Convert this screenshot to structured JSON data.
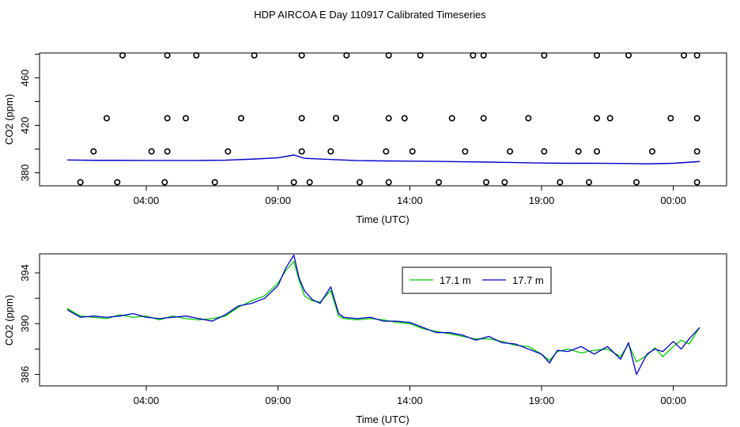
{
  "title": "HDP AIRCOA E  Day 110917  Calibrated Timeseries",
  "chart_data": [
    {
      "type": "scatter",
      "xlabel": "Time (UTC)",
      "ylabel": "CO2 (ppm)",
      "xlim": [
        0,
        24
      ],
      "ylim": [
        369,
        481
      ],
      "x_ticks": [
        3,
        8,
        13,
        18,
        23
      ],
      "x_tick_labels": [
        "04:00",
        "09:00",
        "14:00",
        "19:00",
        "00:00"
      ],
      "y_ticks": [
        380,
        420,
        460
      ],
      "y_tick_labels": [
        "380",
        "420",
        "460"
      ],
      "grid": false,
      "series": [
        {
          "kind": "calibration-points",
          "color": "#000000",
          "points": [
            [
              0.5,
              372
            ],
            [
              1.9,
              372
            ],
            [
              3.7,
              372
            ],
            [
              5.6,
              372
            ],
            [
              8.6,
              372
            ],
            [
              9.2,
              372
            ],
            [
              11.1,
              372
            ],
            [
              12.2,
              372
            ],
            [
              14.1,
              372
            ],
            [
              15.9,
              372
            ],
            [
              16.6,
              372
            ],
            [
              18.7,
              372
            ],
            [
              19.8,
              372
            ],
            [
              21.6,
              372
            ],
            [
              23.9,
              372
            ],
            [
              1.0,
              398
            ],
            [
              3.2,
              398
            ],
            [
              3.8,
              398
            ],
            [
              6.1,
              398
            ],
            [
              8.9,
              398
            ],
            [
              10.0,
              398
            ],
            [
              12.1,
              398
            ],
            [
              13.1,
              398
            ],
            [
              15.1,
              398
            ],
            [
              16.8,
              398
            ],
            [
              18.1,
              398
            ],
            [
              19.4,
              398
            ],
            [
              20.1,
              398
            ],
            [
              22.2,
              398
            ],
            [
              23.9,
              398
            ],
            [
              1.5,
              426
            ],
            [
              3.8,
              426
            ],
            [
              4.5,
              426
            ],
            [
              6.6,
              426
            ],
            [
              8.9,
              426
            ],
            [
              10.2,
              426
            ],
            [
              12.2,
              426
            ],
            [
              12.8,
              426
            ],
            [
              14.6,
              426
            ],
            [
              15.8,
              426
            ],
            [
              17.5,
              426
            ],
            [
              20.1,
              426
            ],
            [
              20.6,
              426
            ],
            [
              22.9,
              426
            ],
            [
              23.9,
              426
            ],
            [
              2.1,
              479
            ],
            [
              3.8,
              479
            ],
            [
              4.9,
              479
            ],
            [
              7.1,
              479
            ],
            [
              8.9,
              479
            ],
            [
              10.6,
              479
            ],
            [
              12.2,
              479
            ],
            [
              13.4,
              479
            ],
            [
              15.4,
              479
            ],
            [
              15.8,
              479
            ],
            [
              18.1,
              479
            ],
            [
              20.1,
              479
            ],
            [
              21.3,
              479
            ],
            [
              23.4,
              479
            ],
            [
              23.9,
              479
            ]
          ]
        },
        {
          "kind": "line",
          "color": "#0000cc",
          "x": [
            0,
            1,
            2,
            3,
            4,
            5,
            6,
            7,
            8,
            8.6,
            9,
            10,
            11,
            12,
            13,
            14,
            15,
            16,
            17,
            18,
            19,
            20,
            21,
            22,
            23,
            24
          ],
          "y": [
            390.8,
            390.5,
            390.5,
            390.4,
            390.4,
            390.4,
            390.6,
            391.5,
            392.6,
            395.0,
            392.2,
            391.2,
            390.3,
            390.0,
            389.8,
            389.6,
            389.3,
            389.0,
            388.6,
            388.2,
            388.0,
            388.0,
            387.9,
            387.5,
            388.0,
            389.5
          ]
        }
      ]
    },
    {
      "type": "line",
      "xlabel": "Time (UTC)",
      "ylabel": "CO2 (ppm)",
      "xlim": [
        0,
        24
      ],
      "ylim": [
        385.1,
        395.5
      ],
      "x_ticks": [
        3,
        8,
        13,
        18,
        23
      ],
      "x_tick_labels": [
        "04:00",
        "09:00",
        "14:00",
        "19:00",
        "00:00"
      ],
      "y_ticks": [
        386,
        390,
        394
      ],
      "y_tick_labels": [
        "386",
        "390",
        "394"
      ],
      "grid": false,
      "legend": "top-center",
      "series": [
        {
          "name": "17.1 m",
          "color": "#00cc00",
          "x": [
            0,
            0.5,
            1,
            1.5,
            2,
            2.5,
            3,
            3.5,
            4,
            4.5,
            5,
            5.5,
            6,
            6.5,
            7,
            7.5,
            8,
            8.3,
            8.6,
            8.8,
            9,
            9.3,
            9.6,
            10,
            10.3,
            10.5,
            11,
            11.5,
            12,
            12.5,
            13,
            13.5,
            14,
            14.5,
            15,
            15.5,
            16,
            16.5,
            17,
            17.5,
            18,
            18.3,
            18.6,
            19,
            19.5,
            20,
            20.5,
            21,
            21.3,
            21.6,
            22,
            22.3,
            22.6,
            23,
            23.3,
            23.6,
            24
          ],
          "y": [
            391.2,
            390.6,
            390.5,
            390.4,
            390.7,
            390.5,
            390.6,
            390.3,
            390.6,
            390.4,
            390.3,
            390.4,
            390.6,
            391.3,
            391.8,
            392.2,
            393.2,
            394.2,
            394.9,
            393.4,
            392.2,
            391.8,
            391.7,
            392.6,
            390.6,
            390.4,
            390.3,
            390.4,
            390.3,
            390.1,
            390.0,
            389.6,
            389.4,
            389.2,
            389.0,
            388.8,
            388.8,
            388.6,
            388.3,
            388.2,
            387.6,
            387.1,
            387.8,
            388.0,
            387.7,
            387.9,
            388.0,
            387.4,
            388.4,
            387.0,
            387.5,
            388.1,
            387.4,
            388.2,
            388.7,
            388.4,
            389.7
          ]
        },
        {
          "name": "17.7 m",
          "color": "#0000cc",
          "x": [
            0,
            0.5,
            1,
            1.5,
            2,
            2.5,
            3,
            3.5,
            4,
            4.5,
            5,
            5.5,
            6,
            6.5,
            7,
            7.5,
            8,
            8.3,
            8.6,
            8.8,
            9,
            9.3,
            9.6,
            10,
            10.3,
            10.5,
            11,
            11.5,
            12,
            12.5,
            13,
            13.5,
            14,
            14.5,
            15,
            15.5,
            16,
            16.5,
            17,
            17.5,
            18,
            18.3,
            18.6,
            19,
            19.5,
            20,
            20.5,
            21,
            21.3,
            21.6,
            22,
            22.3,
            22.6,
            23,
            23.3,
            23.6,
            24
          ],
          "y": [
            391.1,
            390.5,
            390.6,
            390.5,
            390.6,
            390.8,
            390.5,
            390.4,
            390.5,
            390.6,
            390.4,
            390.2,
            390.7,
            391.4,
            391.6,
            392.0,
            393.0,
            394.4,
            395.4,
            393.6,
            392.6,
            391.9,
            391.6,
            392.9,
            390.8,
            390.5,
            390.4,
            390.5,
            390.2,
            390.2,
            390.1,
            389.7,
            389.3,
            389.3,
            389.1,
            388.7,
            389.0,
            388.5,
            388.4,
            388.0,
            387.6,
            386.9,
            387.9,
            387.8,
            388.2,
            387.6,
            388.2,
            387.2,
            388.5,
            386.0,
            387.6,
            388.0,
            387.8,
            388.6,
            388.0,
            388.8,
            389.7
          ]
        }
      ]
    }
  ]
}
